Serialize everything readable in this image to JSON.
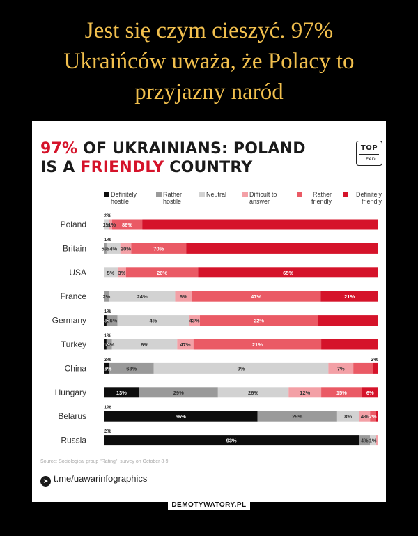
{
  "meme_title": [
    "Jest się czym cieszyć. 97%",
    "Ukraińców uważa, że Polacy to",
    "przyjazny naród"
  ],
  "headline": {
    "line1_red": "97%",
    "line1_rest": " OF UKRAINIANS: POLAND",
    "line2_start": "IS A ",
    "line2_red": "FRIENDLY",
    "line2_end": " COUNTRY"
  },
  "logo": {
    "line1": "TOP",
    "line2": "LEAD"
  },
  "legend": [
    {
      "label": "Definitely hostile",
      "color": "#0d0d0d"
    },
    {
      "label": "Rather hostile",
      "color": "#9a9a9a"
    },
    {
      "label": "Neutral",
      "color": "#d2d2d2"
    },
    {
      "label": "Difficult to answer",
      "color": "#f3a0a6"
    },
    {
      "label": "Rather friendly",
      "color": "#ea5a65"
    },
    {
      "label": "Definitely friendly",
      "color": "#d5132a"
    }
  ],
  "chart_data": {
    "type": "bar",
    "stacked": true,
    "orientation": "horizontal",
    "title": "97% OF UKRAINIANS: POLAND IS A FRIENDLY COUNTRY",
    "categories": [
      "Poland",
      "Britain",
      "USA",
      "France",
      "Germany",
      "Turkey",
      "China",
      "Hungary",
      "Belarus",
      "Russia"
    ],
    "series": [
      {
        "name": "Definitely hostile",
        "values": [
          0,
          0,
          0,
          0,
          1,
          1,
          2,
          13,
          56,
          93
        ]
      },
      {
        "name": "Rather hostile",
        "values": [
          0,
          1,
          0,
          2,
          4,
          2,
          16,
          29,
          29,
          4
        ]
      },
      {
        "name": "Neutral",
        "values": [
          2,
          5,
          5,
          24,
          26,
          24,
          63,
          26,
          8,
          2
        ]
      },
      {
        "name": "Difficult to answer",
        "values": [
          1,
          4,
          3,
          6,
          4,
          6,
          9,
          12,
          4,
          1
        ]
      },
      {
        "name": "Rather friendly",
        "values": [
          11,
          20,
          26,
          47,
          43,
          47,
          7,
          15,
          2,
          0
        ]
      },
      {
        "name": "Definitely friendly",
        "values": [
          86,
          70,
          65,
          21,
          22,
          21,
          2,
          6,
          1,
          0
        ]
      }
    ],
    "labels": [
      [
        "",
        "",
        "1%",
        "11%",
        "",
        "86%"
      ],
      [
        "",
        "5%",
        "4%",
        "20%",
        "",
        "70%"
      ],
      [
        "",
        "5%",
        "3%",
        "26%",
        "",
        "65%"
      ],
      [
        "2%",
        "24%",
        "6%",
        "47%",
        "21%",
        ""
      ],
      [
        "4%",
        "26%",
        "4%",
        "43%",
        "22%",
        ""
      ],
      [
        "2%",
        "24%",
        "6%",
        "47%",
        "21%",
        ""
      ],
      [
        "",
        "16%",
        "63%",
        "9%",
        "7%",
        ""
      ],
      [
        "13%",
        "29%",
        "26%",
        "12%",
        "15%",
        "6%"
      ],
      [
        "56%",
        "29%",
        "8%",
        "4%",
        "2%",
        ""
      ],
      [
        "93%",
        "4%",
        "1%",
        "",
        "",
        ""
      ]
    ],
    "above_labels": [
      "2%",
      "1%",
      "",
      "",
      "1%",
      "1%",
      "2%",
      "",
      "1%",
      "2%"
    ],
    "right_above_labels": [
      "",
      "",
      "",
      "",
      "",
      "",
      "2%",
      "",
      "",
      ""
    ]
  },
  "source": "Source: Sociological group \"Rating\", survey on October 8-9.",
  "telegram": "t.me/uawarinfographics",
  "watermark": "DEMOTYWATORY.PL"
}
